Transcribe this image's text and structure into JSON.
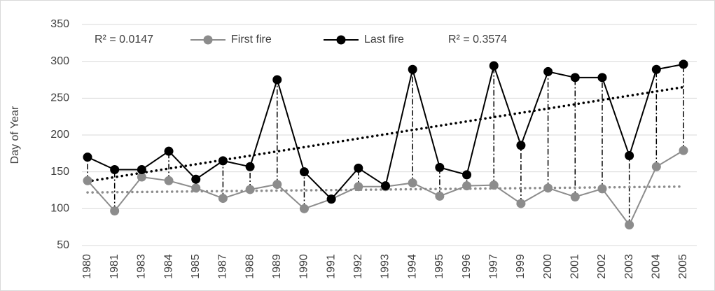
{
  "chart_data": {
    "type": "line",
    "y_label": "Day of Year",
    "categories": [
      "1980",
      "1981",
      "1983",
      "1984",
      "1985",
      "1987",
      "1988",
      "1989",
      "1990",
      "1991",
      "1992",
      "1993",
      "1994",
      "1995",
      "1996",
      "1997",
      "1999",
      "2000",
      "2001",
      "2002",
      "2003",
      "2004",
      "2005"
    ],
    "series": [
      {
        "name": "First fire",
        "color": "#8c8c8c",
        "values": [
          138,
          97,
          143,
          138,
          128,
          114,
          126,
          133,
          100,
          113,
          130,
          130,
          135,
          117,
          131,
          132,
          107,
          128,
          116,
          127,
          78,
          157,
          179
        ],
        "trend": [
          122,
          130
        ],
        "annotation": "R² = 0.0147"
      },
      {
        "name": "Last fire",
        "color": "#000000",
        "values": [
          170,
          153,
          153,
          178,
          140,
          165,
          157,
          275,
          150,
          113,
          155,
          131,
          289,
          156,
          146,
          294,
          186,
          286,
          278,
          278,
          172,
          289,
          296
        ],
        "trend": [
          137,
          265
        ],
        "annotation": "R² = 0.3574"
      }
    ],
    "ylim": [
      50,
      350
    ],
    "yticks": [
      50,
      100,
      150,
      200,
      250,
      300,
      350
    ],
    "grid": true,
    "legend": "top",
    "drop_lines": true
  }
}
